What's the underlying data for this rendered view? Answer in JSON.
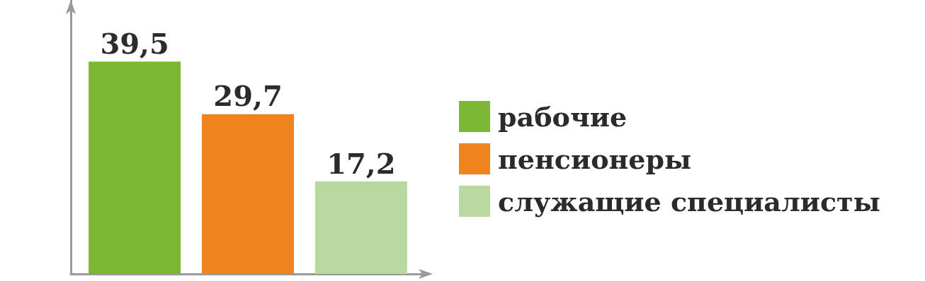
{
  "chart_data": {
    "type": "bar",
    "categories": [
      null
    ],
    "series": [
      {
        "name": "рабочие",
        "color": "#7cb732",
        "values": [
          39.5
        ],
        "value_labels": [
          "39,5"
        ]
      },
      {
        "name": "пенсионеры",
        "color": "#ef831e",
        "values": [
          29.7
        ],
        "value_labels": [
          "29,7"
        ]
      },
      {
        "name": "служащие специалисты",
        "color": "#b9d89d",
        "values": [
          17.2
        ],
        "value_labels": [
          "17,2"
        ]
      }
    ],
    "legend": "right",
    "grid": false
  }
}
